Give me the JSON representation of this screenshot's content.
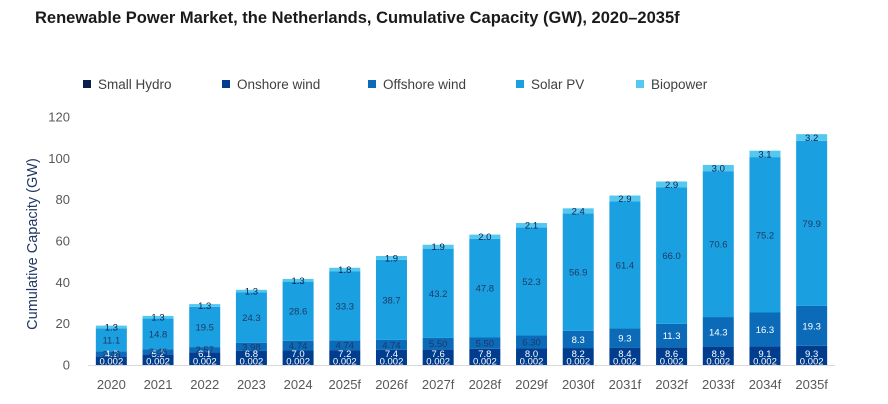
{
  "page": {
    "title": "Renewable Power Market, the Netherlands, Cumulative Capacity (GW), 2020–2035f"
  },
  "chart_data": {
    "type": "bar",
    "stacked": true,
    "title": "Renewable Power Market, the Netherlands, Cumulative Capacity (GW), 2020–2035f",
    "xlabel": "",
    "ylabel": "Cumulative Capacity (GW)",
    "ylim": [
      0,
      120
    ],
    "yticks": [
      0,
      20,
      40,
      60,
      80,
      100,
      120
    ],
    "grid": false,
    "legend_position": "top",
    "categories": [
      "2020",
      "2021",
      "2022",
      "2023",
      "2024",
      "2025f",
      "2026f",
      "2027f",
      "2028f",
      "2029f",
      "2030f",
      "2031f",
      "2032f",
      "2033f",
      "2034f",
      "2035f"
    ],
    "series": [
      {
        "name": "Small Hydro",
        "color": "#0b1f4f",
        "values": [
          0.002,
          0.002,
          0.002,
          0.002,
          0.002,
          0.002,
          0.002,
          0.002,
          0.002,
          0.002,
          0.002,
          0.002,
          0.002,
          0.002,
          0.002,
          0.002
        ],
        "labels": [
          "0.002",
          "0.002",
          "0.002",
          "0.002",
          "0.002",
          "0.002",
          "0.002",
          "0.002",
          "0.002",
          "0.002",
          "0.002",
          "0.002",
          "0.002",
          "0.002",
          "0.002",
          "0.002"
        ]
      },
      {
        "name": "Onshore wind",
        "color": "#003d8f",
        "values": [
          4.2,
          5.2,
          6.1,
          6.8,
          7.0,
          7.2,
          7.4,
          7.6,
          7.8,
          8.0,
          8.2,
          8.4,
          8.6,
          8.9,
          9.1,
          9.3
        ],
        "labels": [
          "4.2",
          "5.2",
          "6.1",
          "6.8",
          "7.0",
          "7.2",
          "7.4",
          "7.6",
          "7.8",
          "8.0",
          "8.2",
          "8.4",
          "8.6",
          "8.9",
          "9.1",
          "9.3"
        ]
      },
      {
        "name": "Offshore wind",
        "color": "#0b6bb8",
        "values": [
          2.46,
          2.46,
          2.57,
          3.98,
          4.74,
          4.74,
          4.74,
          5.5,
          5.5,
          6.3,
          8.3,
          9.3,
          11.3,
          14.3,
          16.3,
          19.3
        ],
        "labels": [
          "2.46",
          "2.46",
          "2.57",
          "3.98",
          "4.74",
          "4.74",
          "4.74",
          "5.50",
          "5.50",
          "6.30",
          "8.3",
          "9.3",
          "11.3",
          "14.3",
          "16.3",
          "19.3"
        ]
      },
      {
        "name": "Solar PV",
        "color": "#1aa0e0",
        "values": [
          11.1,
          14.8,
          19.5,
          24.3,
          28.6,
          33.3,
          38.7,
          43.2,
          47.8,
          52.3,
          56.9,
          61.4,
          66.0,
          70.6,
          75.2,
          79.9
        ],
        "labels": [
          "11.1",
          "14.8",
          "19.5",
          "24.3",
          "28.6",
          "33.3",
          "38.7",
          "43.2",
          "47.8",
          "52.3",
          "56.9",
          "61.4",
          "66.0",
          "70.6",
          "75.2",
          "79.9"
        ]
      },
      {
        "name": "Biopower",
        "color": "#55c8f0",
        "values": [
          1.3,
          1.3,
          1.3,
          1.3,
          1.3,
          1.8,
          1.9,
          1.9,
          2.0,
          2.1,
          2.4,
          2.9,
          2.9,
          3.0,
          3.1,
          3.2
        ],
        "labels": [
          "1.3",
          "1.3",
          "1.3",
          "1.3",
          "1.3",
          "1.8",
          "1.9",
          "1.9",
          "2.0",
          "2.1",
          "2.4",
          "2.9",
          "2.9",
          "3.0",
          "3.1",
          "3.2"
        ]
      }
    ]
  }
}
